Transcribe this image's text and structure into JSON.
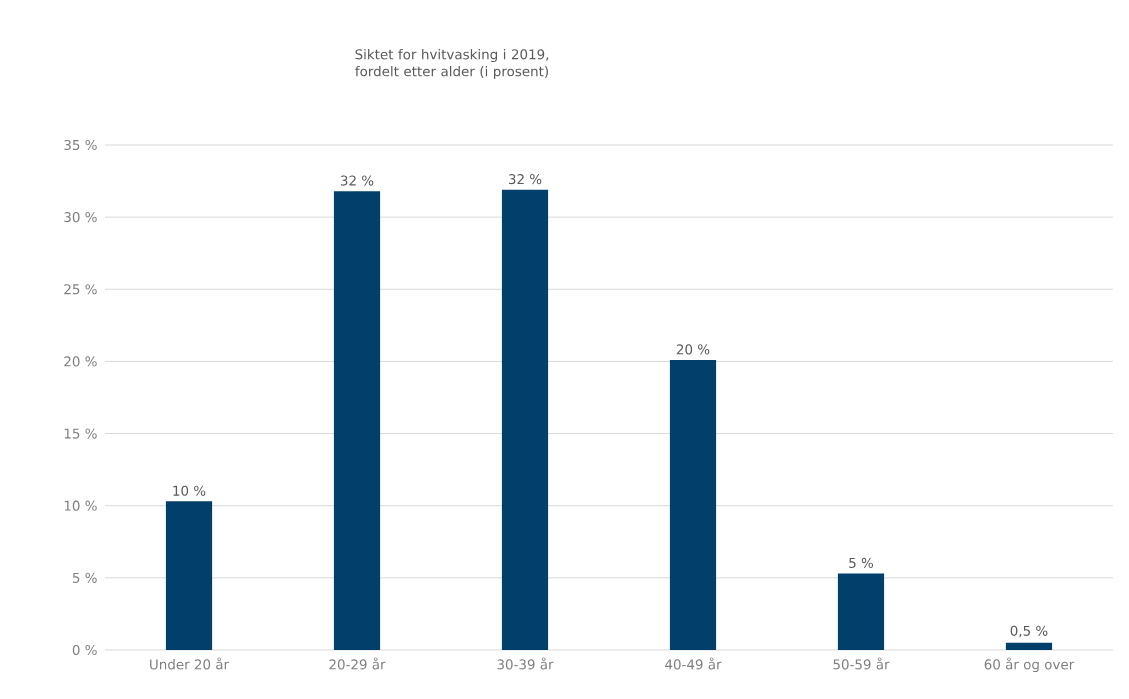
{
  "chart_data": {
    "type": "bar",
    "title": "Siktet for hvitvasking i 2019,\nfordelt etter alder (i prosent)",
    "categories": [
      "Under 20 år",
      "20-29 år",
      "30-39 år",
      "40-49 år",
      "50-59 år",
      "60 år og over"
    ],
    "values": [
      10.3,
      31.8,
      31.9,
      20.1,
      5.3,
      0.5
    ],
    "value_labels": [
      "10 %",
      "32 %",
      "32 %",
      "20 %",
      "5 %",
      "0,5 %"
    ],
    "color": "#023f6a",
    "ylim": [
      0,
      35
    ],
    "yticks": [
      {
        "value": 0,
        "label": "0 %"
      },
      {
        "value": 5,
        "label": "5 %"
      },
      {
        "value": 10,
        "label": "10 %"
      },
      {
        "value": 15,
        "label": "15 %"
      },
      {
        "value": 20,
        "label": "20 %"
      },
      {
        "value": 25,
        "label": "25 %"
      },
      {
        "value": 30,
        "label": "30 %"
      },
      {
        "value": 35,
        "label": "35 %"
      }
    ],
    "grid": "y"
  }
}
